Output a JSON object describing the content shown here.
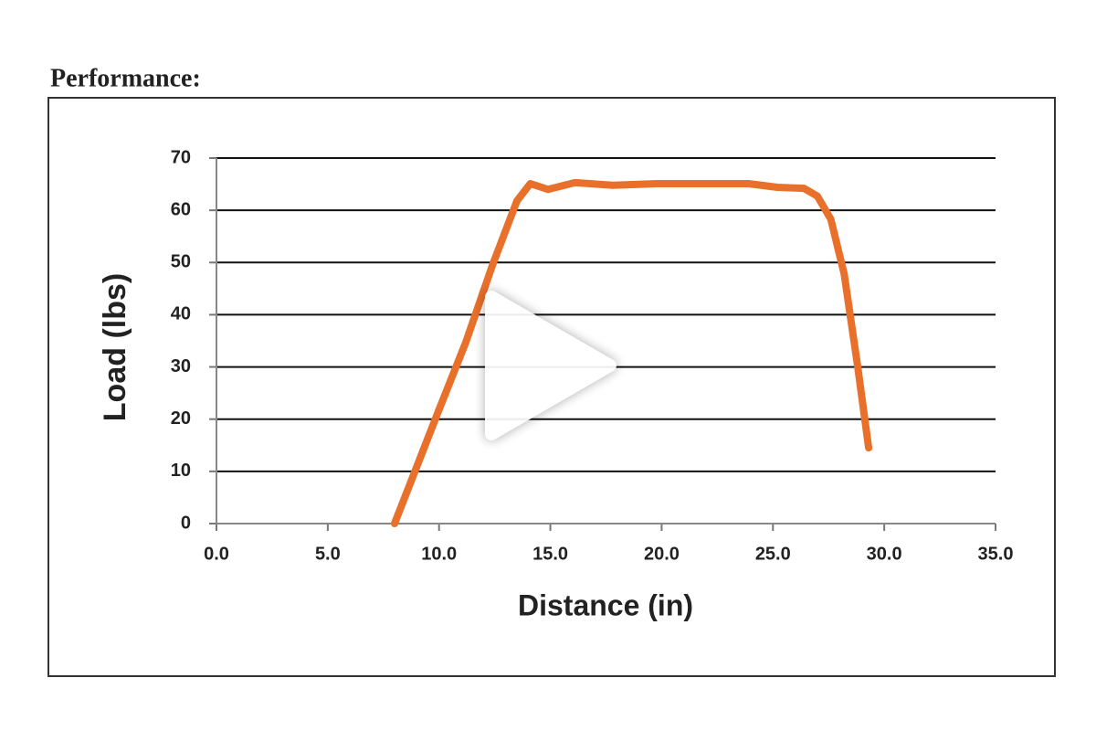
{
  "chart_data": {
    "type": "line",
    "title": "Performance:",
    "xlabel": "Distance (in)",
    "ylabel": "Load (lbs)",
    "x": [
      8.0,
      9.97,
      11.2,
      12.4,
      13.5,
      14.1,
      14.9,
      16.1,
      17.8,
      19.8,
      23.9,
      25.2,
      26.4,
      27.0,
      27.6,
      28.2,
      28.8,
      29.3
    ],
    "values": [
      0,
      21.5,
      34.7,
      49.5,
      61.8,
      65.1,
      64,
      65.3,
      64.8,
      65.1,
      65.1,
      64.4,
      64.2,
      62.7,
      58.3,
      47.8,
      30.3,
      14.5
    ],
    "color": "#e8702a",
    "xlim": [
      0,
      35
    ],
    "xticks": [
      {
        "value": 0,
        "label": "0.0"
      },
      {
        "value": 5,
        "label": "5.0"
      },
      {
        "value": 10,
        "label": "10.0"
      },
      {
        "value": 15,
        "label": "15.0"
      },
      {
        "value": 20,
        "label": "20.0"
      },
      {
        "value": 25,
        "label": "25.0"
      },
      {
        "value": 30,
        "label": "30.0"
      },
      {
        "value": 35,
        "label": "35.0"
      }
    ],
    "ylim": [
      0,
      70
    ],
    "yticks": [
      0,
      10,
      20,
      30,
      40,
      50,
      60,
      70
    ],
    "grid": true
  }
}
